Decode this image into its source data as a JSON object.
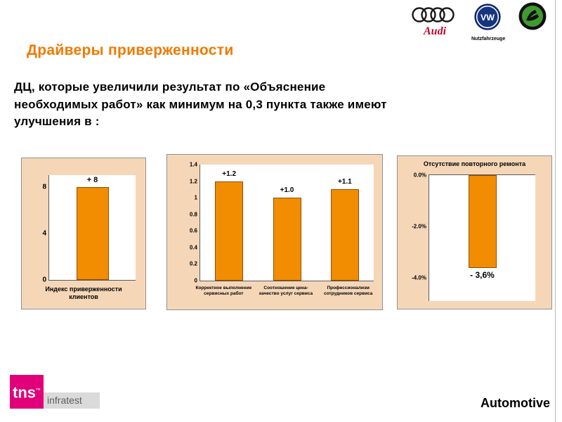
{
  "header": {
    "title": "Драйверы приверженности"
  },
  "body": {
    "line1": "ДЦ, которые увеличили результат по «Объяснение",
    "line2": "необходимых работ» как минимум на 0,3 пункта также имеют",
    "line3": "улучшения в :"
  },
  "logos": {
    "audi_label": "Audi",
    "vw_label": "VW",
    "vw_caption": "Nutzfahrzeuge"
  },
  "footer": {
    "tns": "tns",
    "infratest": "infratest",
    "brand": "Automotive"
  },
  "colors": {
    "bar_orange": "#F28C00",
    "title_orange": "#EF7A00",
    "chart_background": "#F5D7B8",
    "tns_magenta": "#E2007A"
  },
  "chart_data": [
    {
      "type": "bar",
      "title": "",
      "categories": [
        "Индекс приверженности клиентов"
      ],
      "values": [
        8
      ],
      "bar_labels": [
        "+ 8"
      ],
      "ylabel": "",
      "ylim": [
        0,
        9
      ],
      "yticks": [
        "0",
        "4",
        "8"
      ],
      "grid": false,
      "legend": "none"
    },
    {
      "type": "bar",
      "title": "",
      "categories": [
        "Корректное выполнение сервисных работ",
        "Соотношение цена- качество услуг сервиса",
        "Профессионализм сотрудников сервиса"
      ],
      "values": [
        1.2,
        1.0,
        1.1
      ],
      "bar_labels": [
        "+1.2",
        "+1.0",
        "+1.1"
      ],
      "ylabel": "",
      "ylim": [
        0,
        1.4
      ],
      "yticks": [
        "0",
        "0.2",
        "0.4",
        "0.6",
        "0.8",
        "1",
        "1.2",
        "1.4"
      ],
      "grid": false,
      "legend": "none"
    },
    {
      "type": "bar",
      "title": "Отсутствие повторного ремонта",
      "categories": [],
      "values": [
        -3.6
      ],
      "bar_labels": [
        "- 3,6%"
      ],
      "ylabel": "",
      "ylim": [
        -4.9,
        0
      ],
      "yticks": [
        "0.0%",
        "-2.0%",
        "-4.0%"
      ],
      "grid": false,
      "legend": "none"
    }
  ]
}
